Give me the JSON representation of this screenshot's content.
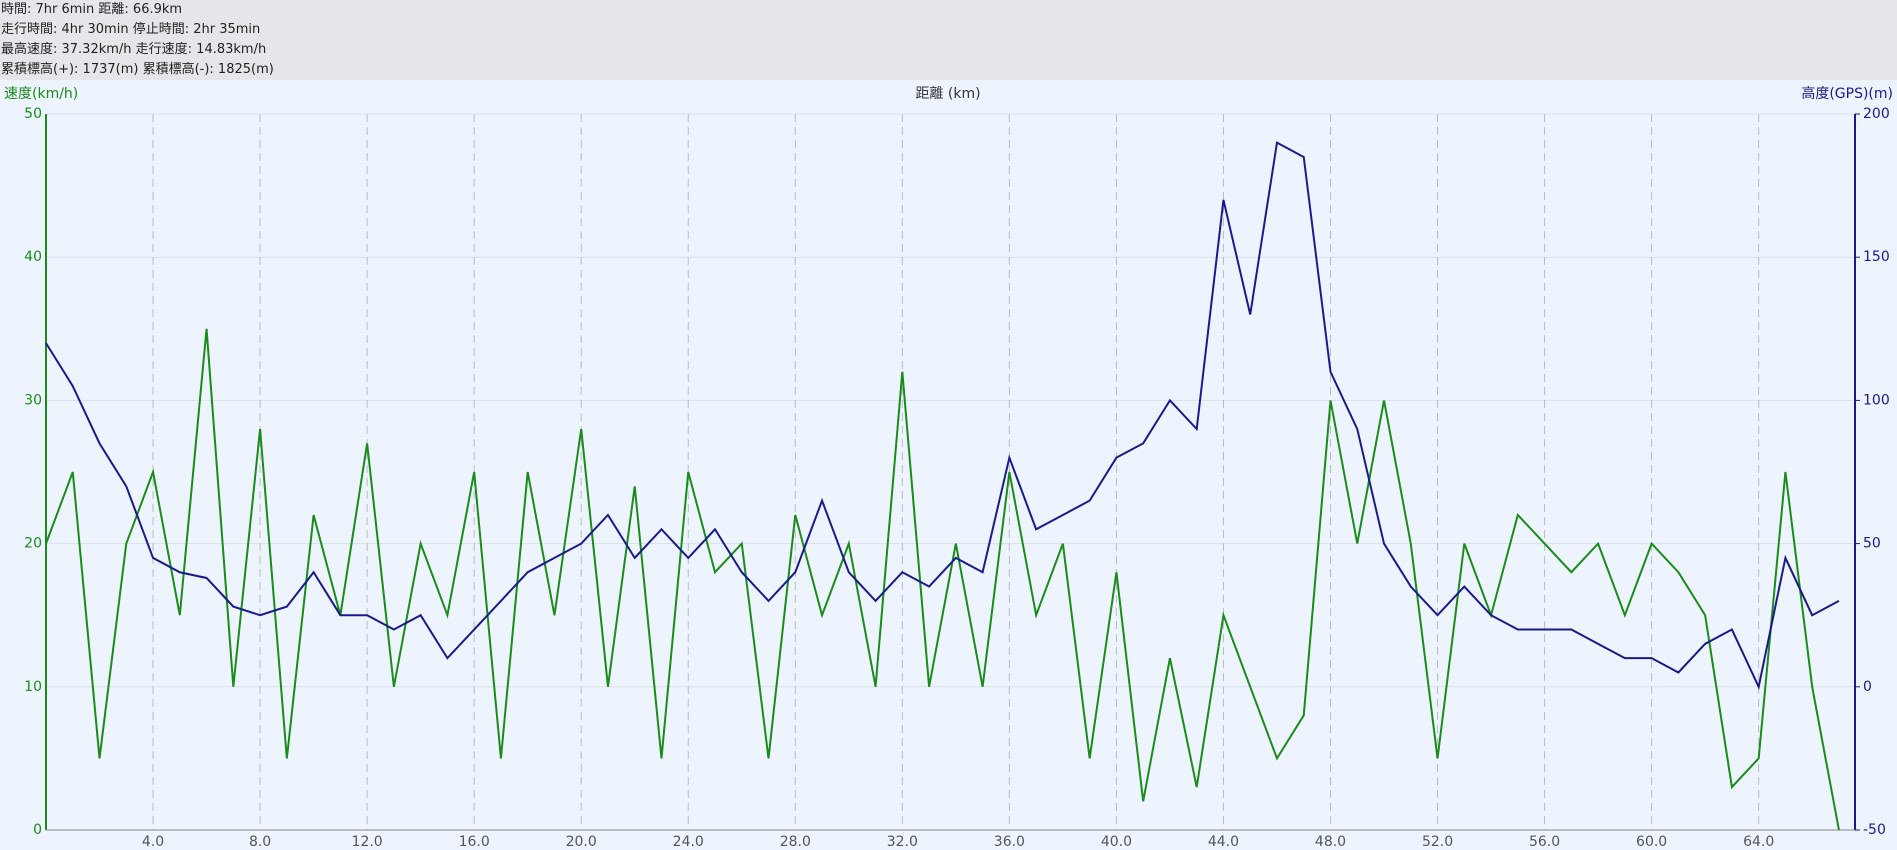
{
  "header": {
    "lines": [
      "時間: 7hr 6min 距離: 66.9km",
      "走行時間: 4hr 30min 停止時間: 2hr 35min",
      "最高速度: 37.32km/h 走行速度: 14.83km/h",
      "累積標高(+): 1737(m) 累積標高(-): 1825(m)"
    ]
  },
  "chart_data": {
    "type": "line",
    "title": "距離 (km)",
    "y_label": "速度(km/h)",
    "y2_label": "高度(GPS)(m)",
    "x": [
      0,
      1,
      2,
      3,
      4,
      5,
      6,
      7,
      8,
      9,
      10,
      11,
      12,
      13,
      14,
      15,
      16,
      17,
      18,
      19,
      20,
      21,
      22,
      23,
      24,
      25,
      26,
      27,
      28,
      29,
      30,
      31,
      32,
      33,
      34,
      35,
      36,
      37,
      38,
      39,
      40,
      41,
      42,
      43,
      44,
      45,
      46,
      47,
      48,
      49,
      50,
      51,
      52,
      53,
      54,
      55,
      56,
      57,
      58,
      59,
      60,
      61,
      62,
      63,
      64,
      65,
      66,
      67
    ],
    "series": [
      {
        "name": "速度(km/h)",
        "color": "#1a8c1a",
        "values": [
          20,
          25,
          5,
          20,
          25,
          15,
          35,
          10,
          28,
          5,
          22,
          15,
          27,
          10,
          20,
          15,
          25,
          5,
          25,
          15,
          28,
          10,
          24,
          5,
          25,
          18,
          20,
          5,
          22,
          15,
          20,
          10,
          32,
          10,
          20,
          10,
          25,
          15,
          20,
          5,
          18,
          2,
          12,
          3,
          15,
          10,
          5,
          8,
          30,
          20,
          30,
          20,
          5,
          20,
          15,
          22,
          20,
          18,
          20,
          15,
          20,
          18,
          15,
          3,
          5,
          25,
          10,
          0
        ]
      },
      {
        "name": "高度(GPS)(m)",
        "color": "#1a1a8c",
        "axis": "y2",
        "values": [
          120,
          105,
          85,
          70,
          45,
          40,
          38,
          28,
          25,
          28,
          40,
          25,
          25,
          20,
          25,
          10,
          20,
          30,
          40,
          45,
          50,
          60,
          45,
          55,
          45,
          55,
          40,
          30,
          40,
          65,
          40,
          30,
          40,
          35,
          45,
          40,
          80,
          55,
          60,
          65,
          80,
          85,
          100,
          90,
          170,
          130,
          190,
          185,
          110,
          90,
          50,
          35,
          25,
          35,
          25,
          20,
          20,
          20,
          15,
          10,
          10,
          5,
          15,
          20,
          0,
          45,
          25,
          30
        ]
      }
    ],
    "xlim": [
      0,
      67.6
    ],
    "xticks": [
      {
        "value": 4,
        "label": "4.0"
      },
      {
        "value": 8,
        "label": "8.0"
      },
      {
        "value": 12,
        "label": "12.0"
      },
      {
        "value": 16,
        "label": "16.0"
      },
      {
        "value": 20,
        "label": "20.0"
      },
      {
        "value": 24,
        "label": "24.0"
      },
      {
        "value": 28,
        "label": "28.0"
      },
      {
        "value": 32,
        "label": "32.0"
      },
      {
        "value": 36,
        "label": "36.0"
      },
      {
        "value": 40,
        "label": "40.0"
      },
      {
        "value": 44,
        "label": "44.0"
      },
      {
        "value": 48,
        "label": "48.0"
      },
      {
        "value": 52,
        "label": "52.0"
      },
      {
        "value": 56,
        "label": "56.0"
      },
      {
        "value": 60,
        "label": "60.0"
      },
      {
        "value": 64,
        "label": "64.0"
      }
    ],
    "ylim": [
      0,
      50
    ],
    "yticks": [
      0,
      10,
      20,
      30,
      40,
      50
    ],
    "y2lim": [
      -50,
      200
    ],
    "y2ticks": [
      -50,
      0,
      50,
      100,
      150,
      200
    ],
    "grid": true
  }
}
